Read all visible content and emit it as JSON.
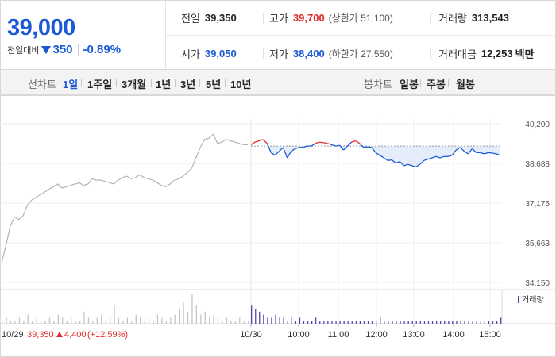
{
  "summary": {
    "current_price": "39,000",
    "change_label": "전일대비",
    "change_value": "350",
    "change_rate": "-0.89%",
    "prev_close": {
      "label": "전일",
      "value": "39,350"
    },
    "open": {
      "label": "시가",
      "value": "39,050"
    },
    "high": {
      "label": "고가",
      "value": "39,700",
      "sub": "(상한가 51,100)"
    },
    "low": {
      "label": "저가",
      "value": "38,400",
      "sub": "(하한가 27,550)"
    },
    "volume": {
      "label": "거래량",
      "value": "313,543"
    },
    "trade_value": {
      "label": "거래대금",
      "value": "12,253",
      "unit": "백만"
    }
  },
  "periods": {
    "line_label": "선차트",
    "line_tabs": [
      "1일",
      "1주일",
      "3개월",
      "1년",
      "3년",
      "5년",
      "10년"
    ],
    "active": "1일",
    "candle_label": "봉차트",
    "candle_tabs": [
      "일봉",
      "주봉",
      "월봉"
    ]
  },
  "colors": {
    "up": "#e22c2c",
    "down": "#1a5ad6",
    "prev_day": "#b4b4b4",
    "volume_today": "#5a43a8"
  },
  "chart_data": [
    {
      "type": "line",
      "y_ticks": [
        "40,200",
        "38,688",
        "37,175",
        "35,663",
        "34,150"
      ],
      "ylim": [
        34150,
        40200
      ],
      "x_tick_labels": [
        "10/30",
        "10:00",
        "11:00",
        "12:00",
        "13:00",
        "14:00",
        "15:00"
      ],
      "reference_line": 39350,
      "prev_day_label": {
        "date": "10/29",
        "close": "39,350",
        "change": "4,400",
        "rate": "(+12.59%)"
      },
      "series": [
        {
          "values": [
            34900,
            35550,
            36300,
            36650,
            36550,
            36700,
            37100,
            37300,
            37400,
            37500,
            37600,
            37700,
            37800,
            37900,
            37750,
            37800,
            37850,
            37900,
            37950,
            37850,
            37900,
            38100,
            38050,
            38050,
            38000,
            37950,
            37900,
            38050,
            38150,
            38200,
            38100,
            38150,
            38250,
            38150,
            38100,
            38050,
            37950,
            37850,
            37800,
            37900,
            38050,
            38100,
            38200,
            38350,
            38500,
            38900,
            39300,
            39600,
            39650,
            39800,
            39450,
            39500,
            39600,
            39550,
            39500,
            39450,
            39400,
            39400
          ]
        },
        {
          "values": [
            39400,
            39500,
            39550,
            39600,
            39450,
            39100,
            39000,
            39150,
            39300,
            38900,
            39150,
            39250,
            39300,
            39300,
            39350,
            39350,
            39450,
            39500,
            39480,
            39450,
            39400,
            39350,
            39380,
            39200,
            39350,
            39500,
            39550,
            39450,
            39300,
            39320,
            39300,
            39100,
            39000,
            38900,
            38800,
            38820,
            38700,
            38750,
            38600,
            38650,
            38600,
            38550,
            38650,
            38800,
            38850,
            38900,
            38950,
            38900,
            38950,
            38950,
            39000,
            39200,
            39300,
            39150,
            39050,
            39250,
            39100,
            39100,
            39050,
            39100,
            39080,
            39050,
            39000
          ]
        }
      ]
    },
    {
      "type": "bar",
      "legend": "거래량",
      "series": [
        {
          "values": [
            1,
            2,
            1,
            1,
            2,
            1,
            3,
            1,
            2,
            1,
            1,
            2,
            1,
            3,
            2,
            1,
            2,
            1,
            1,
            4,
            2,
            1,
            2,
            3,
            1,
            2,
            6,
            2,
            1,
            2,
            1,
            3,
            2,
            1,
            2,
            1,
            3,
            2,
            1,
            2,
            3,
            5,
            7,
            4,
            10,
            6,
            3,
            4,
            2,
            3,
            2,
            1,
            2,
            1,
            1,
            2,
            1,
            1
          ]
        },
        {
          "values": [
            6,
            5,
            4,
            3,
            2,
            2,
            3,
            2,
            2,
            1,
            2,
            1,
            2,
            1,
            1,
            1,
            2,
            1,
            1,
            1,
            1,
            1,
            1,
            1,
            1,
            1,
            1,
            1,
            1,
            1,
            1,
            1,
            2,
            1,
            1,
            1,
            1,
            1,
            1,
            1,
            1,
            1,
            1,
            1,
            1,
            1,
            1,
            1,
            1,
            1,
            1,
            1,
            1,
            1,
            1,
            1,
            1,
            1,
            1,
            1,
            1,
            1,
            2
          ]
        }
      ]
    }
  ]
}
